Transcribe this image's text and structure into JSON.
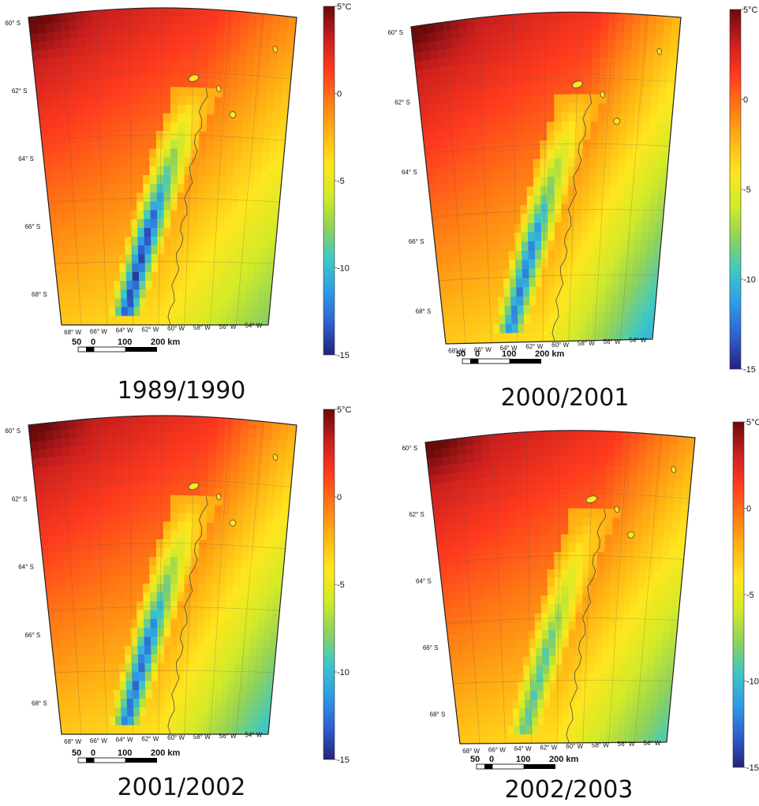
{
  "colorbar": {
    "unit": "°C",
    "stops": [
      "#6b0a0a",
      "#c81e1e",
      "#ff3a1e",
      "#ff7a14",
      "#ffb414",
      "#ffe61e",
      "#d2ea28",
      "#8fd25a",
      "#3cc8c8",
      "#2f9be6",
      "#2f5fd2",
      "#23237a"
    ],
    "ticks": [
      {
        "value": 5,
        "label": "5°C"
      },
      {
        "value": 0,
        "label": "0"
      },
      {
        "value": -5,
        "label": "-5"
      },
      {
        "value": -10,
        "label": "-10"
      },
      {
        "value": -15,
        "label": "-15"
      }
    ]
  },
  "graticule": {
    "lat_labels": [
      "60° S",
      "62° S",
      "64° S",
      "66° S",
      "68° S"
    ],
    "lon_labels": [
      "68° W",
      "66° W",
      "64° W",
      "62° W",
      "60° W",
      "58° W",
      "56° W",
      "54° W"
    ]
  },
  "scale_bar": {
    "labels": [
      "50",
      "0",
      "100",
      "200 km"
    ]
  },
  "panels": [
    {
      "title": "1989/1990",
      "east_coldness": 0.15,
      "peninsula_coldness": 1.0
    },
    {
      "title": "2000/2001",
      "east_coldness": 0.55,
      "peninsula_coldness": 0.85
    },
    {
      "title": "2001/2002",
      "east_coldness": 0.45,
      "peninsula_coldness": 0.9
    },
    {
      "title": "2002/2003",
      "east_coldness": 0.35,
      "peninsula_coldness": 0.6
    }
  ]
}
